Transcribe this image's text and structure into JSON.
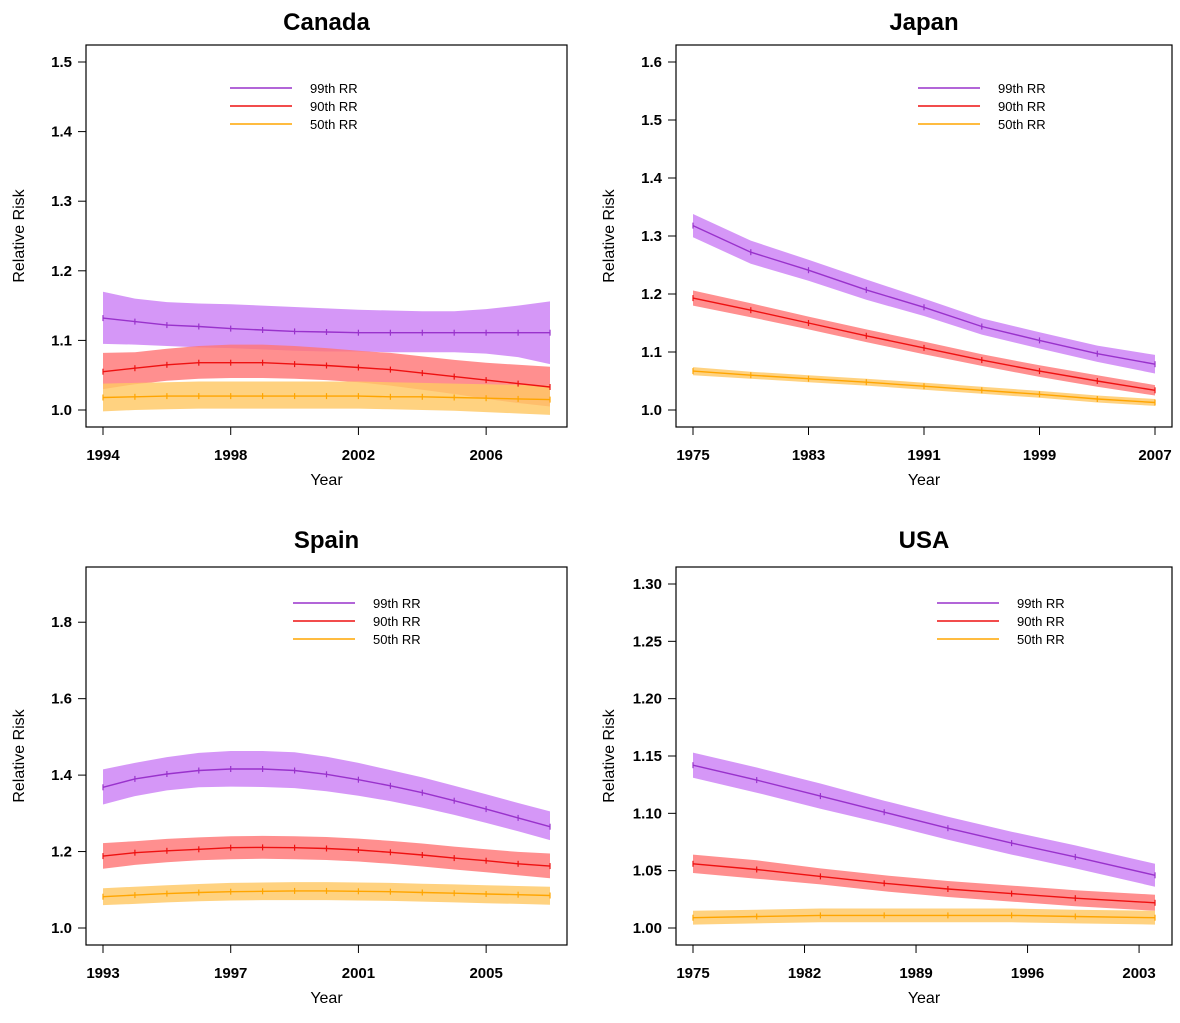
{
  "chart_data": [
    {
      "type": "line",
      "title": "Canada",
      "xlabel": "Year",
      "ylabel": "Relative Risk",
      "xlim": [
        1994,
        2008
      ],
      "ylim": [
        1.0,
        1.5
      ],
      "xticks": [
        1994,
        1998,
        2002,
        2006
      ],
      "yticks": [
        1.0,
        1.1,
        1.2,
        1.3,
        1.4,
        1.5
      ],
      "tick_decimals": 1,
      "legend_placement": "top-center",
      "x": [
        1994,
        1995,
        1996,
        1997,
        1998,
        1999,
        2000,
        2001,
        2002,
        2003,
        2004,
        2005,
        2006,
        2007,
        2008
      ],
      "series": [
        {
          "name": "99th RR",
          "color": "#9932cc",
          "band_color": "#cc80f5",
          "values": [
            1.132,
            1.127,
            1.122,
            1.12,
            1.117,
            1.115,
            1.113,
            1.112,
            1.111,
            1.111,
            1.111,
            1.111,
            1.111,
            1.111,
            1.111
          ],
          "lower": [
            1.095,
            1.094,
            1.092,
            1.09,
            1.089,
            1.087,
            1.085,
            1.084,
            1.084,
            1.083,
            1.083,
            1.083,
            1.081,
            1.076,
            1.066
          ],
          "upper": [
            1.17,
            1.16,
            1.155,
            1.153,
            1.152,
            1.15,
            1.148,
            1.146,
            1.144,
            1.143,
            1.142,
            1.142,
            1.145,
            1.15,
            1.156
          ]
        },
        {
          "name": "90th RR",
          "color": "#ee1111",
          "band_color": "#ff7676",
          "values": [
            1.055,
            1.06,
            1.065,
            1.068,
            1.068,
            1.068,
            1.066,
            1.064,
            1.061,
            1.058,
            1.053,
            1.048,
            1.043,
            1.038,
            1.033
          ],
          "lower": [
            1.03,
            1.037,
            1.042,
            1.045,
            1.046,
            1.046,
            1.045,
            1.043,
            1.04,
            1.035,
            1.029,
            1.023,
            1.016,
            1.01,
            1.005
          ],
          "upper": [
            1.082,
            1.083,
            1.088,
            1.092,
            1.094,
            1.094,
            1.092,
            1.089,
            1.085,
            1.082,
            1.077,
            1.072,
            1.068,
            1.065,
            1.062
          ]
        },
        {
          "name": "50th RR",
          "color": "#ffa500",
          "band_color": "#ffc864",
          "values": [
            1.018,
            1.019,
            1.02,
            1.02,
            1.02,
            1.02,
            1.02,
            1.02,
            1.02,
            1.019,
            1.019,
            1.018,
            1.017,
            1.016,
            1.015
          ],
          "lower": [
            0.998,
            1.0,
            1.001,
            1.002,
            1.002,
            1.002,
            1.002,
            1.002,
            1.002,
            1.001,
            1.0,
            0.999,
            0.997,
            0.995,
            0.993
          ],
          "upper": [
            1.038,
            1.039,
            1.04,
            1.041,
            1.041,
            1.041,
            1.041,
            1.041,
            1.041,
            1.04,
            1.039,
            1.038,
            1.037,
            1.036,
            1.035
          ]
        }
      ]
    },
    {
      "type": "line",
      "title": "Japan",
      "xlabel": "Year",
      "ylabel": "Relative Risk",
      "xlim": [
        1975,
        2007
      ],
      "ylim": [
        1.0,
        1.6
      ],
      "xticks": [
        1975,
        1983,
        1991,
        1999,
        2007
      ],
      "yticks": [
        1.0,
        1.1,
        1.2,
        1.3,
        1.4,
        1.5,
        1.6
      ],
      "tick_decimals": 1,
      "legend_placement": "top-right",
      "x": [
        1975,
        1979,
        1983,
        1987,
        1991,
        1995,
        1999,
        2003,
        2007
      ],
      "series": [
        {
          "name": "99th RR",
          "color": "#9932cc",
          "band_color": "#cc80f5",
          "values": [
            1.318,
            1.272,
            1.241,
            1.207,
            1.177,
            1.144,
            1.12,
            1.097,
            1.079
          ],
          "lower": [
            1.298,
            1.252,
            1.223,
            1.19,
            1.162,
            1.13,
            1.106,
            1.083,
            1.063
          ],
          "upper": [
            1.338,
            1.292,
            1.259,
            1.225,
            1.192,
            1.158,
            1.134,
            1.111,
            1.095
          ]
        },
        {
          "name": "90th RR",
          "color": "#ee1111",
          "band_color": "#ff7676",
          "values": [
            1.193,
            1.172,
            1.15,
            1.128,
            1.107,
            1.086,
            1.067,
            1.05,
            1.034
          ],
          "lower": [
            1.18,
            1.16,
            1.139,
            1.117,
            1.096,
            1.076,
            1.057,
            1.04,
            1.025
          ],
          "upper": [
            1.206,
            1.184,
            1.161,
            1.139,
            1.118,
            1.096,
            1.077,
            1.06,
            1.043
          ]
        },
        {
          "name": "50th RR",
          "color": "#ffa500",
          "band_color": "#ffc864",
          "values": [
            1.067,
            1.06,
            1.054,
            1.048,
            1.041,
            1.034,
            1.027,
            1.019,
            1.013
          ],
          "lower": [
            1.06,
            1.054,
            1.048,
            1.042,
            1.035,
            1.028,
            1.021,
            1.013,
            1.007
          ],
          "upper": [
            1.074,
            1.066,
            1.06,
            1.054,
            1.047,
            1.04,
            1.033,
            1.025,
            1.019
          ]
        }
      ]
    },
    {
      "type": "line",
      "title": "Spain",
      "xlabel": "Year",
      "ylabel": "Relative Risk",
      "xlim": [
        1993,
        2007
      ],
      "ylim": [
        1.0,
        1.9
      ],
      "xticks": [
        1993,
        1997,
        2001,
        2005
      ],
      "yticks": [
        1.0,
        1.2,
        1.4,
        1.6,
        1.8
      ],
      "tick_decimals": 1,
      "legend_placement": "top-right",
      "x": [
        1993,
        1994,
        1995,
        1996,
        1997,
        1998,
        1999,
        2000,
        2001,
        2002,
        2003,
        2004,
        2005,
        2006,
        2007
      ],
      "series": [
        {
          "name": "99th RR",
          "color": "#9932cc",
          "band_color": "#cc80f5",
          "values": [
            1.368,
            1.39,
            1.403,
            1.412,
            1.416,
            1.416,
            1.412,
            1.402,
            1.388,
            1.372,
            1.354,
            1.333,
            1.311,
            1.288,
            1.265
          ],
          "lower": [
            1.323,
            1.345,
            1.36,
            1.368,
            1.37,
            1.369,
            1.366,
            1.358,
            1.346,
            1.332,
            1.315,
            1.296,
            1.275,
            1.253,
            1.23
          ],
          "upper": [
            1.415,
            1.432,
            1.447,
            1.458,
            1.463,
            1.463,
            1.46,
            1.448,
            1.432,
            1.413,
            1.394,
            1.372,
            1.35,
            1.327,
            1.305
          ]
        },
        {
          "name": "90th RR",
          "color": "#ee1111",
          "band_color": "#ff7676",
          "values": [
            1.188,
            1.197,
            1.202,
            1.206,
            1.21,
            1.211,
            1.21,
            1.208,
            1.204,
            1.198,
            1.191,
            1.183,
            1.176,
            1.168,
            1.162
          ],
          "lower": [
            1.155,
            1.165,
            1.172,
            1.177,
            1.18,
            1.181,
            1.18,
            1.178,
            1.174,
            1.168,
            1.161,
            1.153,
            1.146,
            1.138,
            1.13
          ],
          "upper": [
            1.222,
            1.227,
            1.233,
            1.237,
            1.24,
            1.241,
            1.24,
            1.238,
            1.234,
            1.228,
            1.221,
            1.213,
            1.206,
            1.199,
            1.195
          ]
        },
        {
          "name": "50th RR",
          "color": "#ffa500",
          "band_color": "#ffc864",
          "values": [
            1.082,
            1.086,
            1.09,
            1.093,
            1.095,
            1.096,
            1.097,
            1.097,
            1.096,
            1.095,
            1.093,
            1.091,
            1.089,
            1.087,
            1.085
          ],
          "lower": [
            1.06,
            1.063,
            1.067,
            1.07,
            1.072,
            1.073,
            1.073,
            1.073,
            1.072,
            1.071,
            1.069,
            1.067,
            1.065,
            1.063,
            1.061
          ],
          "upper": [
            1.104,
            1.108,
            1.112,
            1.115,
            1.118,
            1.119,
            1.12,
            1.12,
            1.119,
            1.118,
            1.116,
            1.114,
            1.112,
            1.11,
            1.108
          ]
        }
      ]
    },
    {
      "type": "line",
      "title": "USA",
      "xlabel": "Year",
      "ylabel": "Relative Risk",
      "xlim": [
        1975,
        2004
      ],
      "ylim": [
        1.0,
        1.3
      ],
      "xticks": [
        1975,
        1982,
        1989,
        1996,
        2003
      ],
      "yticks": [
        1.0,
        1.05,
        1.1,
        1.15,
        1.2,
        1.25,
        1.3
      ],
      "tick_decimals": 2,
      "legend_placement": "top-right",
      "x": [
        1975,
        1979,
        1983,
        1987,
        1991,
        1995,
        1999,
        2004
      ],
      "series": [
        {
          "name": "99th RR",
          "color": "#9932cc",
          "band_color": "#cc80f5",
          "values": [
            1.142,
            1.129,
            1.115,
            1.101,
            1.087,
            1.074,
            1.062,
            1.046
          ],
          "lower": [
            1.131,
            1.118,
            1.104,
            1.091,
            1.077,
            1.064,
            1.052,
            1.036
          ],
          "upper": [
            1.153,
            1.14,
            1.126,
            1.111,
            1.097,
            1.084,
            1.072,
            1.056
          ]
        },
        {
          "name": "90th RR",
          "color": "#ee1111",
          "band_color": "#ff7676",
          "values": [
            1.056,
            1.051,
            1.045,
            1.039,
            1.034,
            1.03,
            1.026,
            1.022
          ],
          "lower": [
            1.048,
            1.043,
            1.038,
            1.032,
            1.027,
            1.023,
            1.019,
            1.015
          ],
          "upper": [
            1.064,
            1.059,
            1.052,
            1.046,
            1.041,
            1.037,
            1.033,
            1.029
          ]
        },
        {
          "name": "50th RR",
          "color": "#ffa500",
          "band_color": "#ffc864",
          "values": [
            1.009,
            1.01,
            1.011,
            1.011,
            1.011,
            1.011,
            1.01,
            1.009
          ],
          "lower": [
            1.003,
            1.004,
            1.005,
            1.005,
            1.005,
            1.005,
            1.004,
            1.003
          ],
          "upper": [
            1.015,
            1.016,
            1.017,
            1.017,
            1.017,
            1.017,
            1.016,
            1.015
          ]
        }
      ]
    }
  ]
}
